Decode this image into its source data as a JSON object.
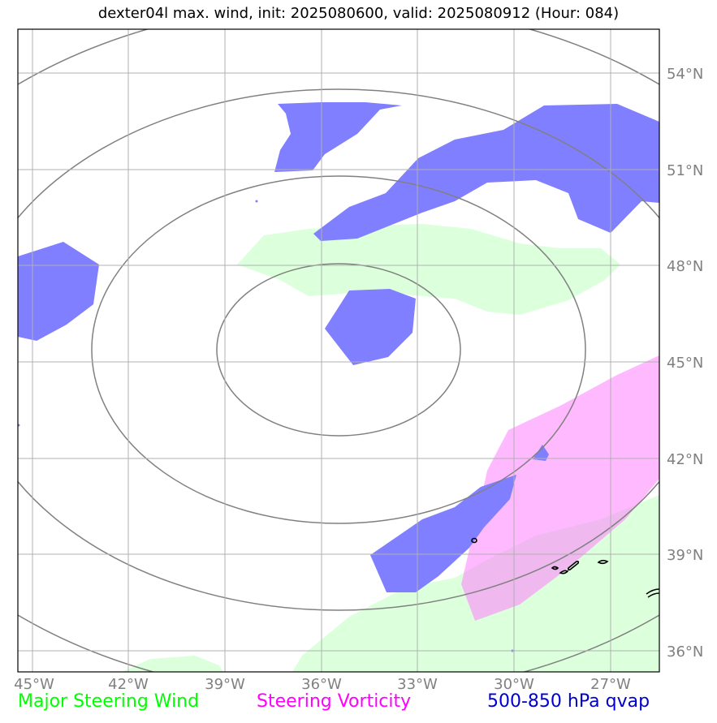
{
  "title": "dexter04l max. wind, init: 2025080600, valid: 2025080912 (Hour: 084)",
  "lat_labels": [
    "54°N",
    "51°N",
    "48°N",
    "45°N",
    "42°N",
    "39°N",
    "36°N"
  ],
  "lon_labels": [
    "45°W",
    "42°W",
    "39°W",
    "36°W",
    "33°W",
    "30°W",
    "27°W"
  ],
  "legend": [
    {
      "label": "Major Steering Wind",
      "color": "#00ff00"
    },
    {
      "label": "Steering Vorticity",
      "color": "#ff00ff"
    },
    {
      "label": "500-850 hPa qvap",
      "color": "#0000cc"
    }
  ],
  "layers": {
    "qvap_fill_color": "#7f7fff",
    "vorticity_fill_color": "#ffb3ff",
    "steering_wind_fill_color": "#dcffdc",
    "range_ring_color": "#808080",
    "gridline_color": "#b0b0b0"
  }
}
